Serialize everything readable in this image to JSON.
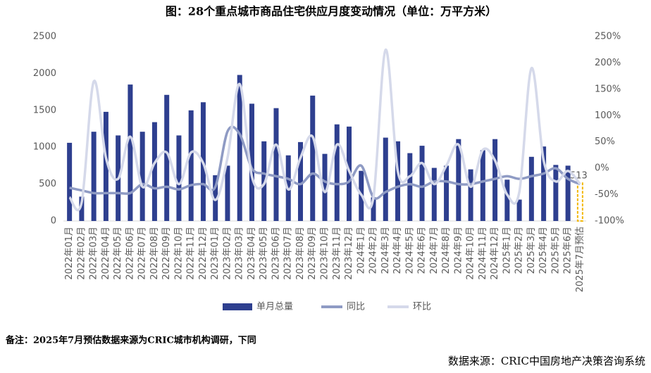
{
  "chart_data": {
    "type": "bar",
    "title": "图：28个重点城市商品住宅供应月度变动情况（单位：万平方米）",
    "categories": [
      "2022年01月",
      "2022年02月",
      "2022年03月",
      "2022年04月",
      "2022年05月",
      "2022年06月",
      "2022年07月",
      "2022年08月",
      "2022年09月",
      "2022年10月",
      "2022年11月",
      "2022年12月",
      "2023年01月",
      "2023年02月",
      "2023年03月",
      "2023年04月",
      "2023年05月",
      "2023年06月",
      "2023年07月",
      "2023年08月",
      "2023年09月",
      "2023年10月",
      "2023年11月",
      "2023年12月",
      "2024年1月",
      "2024年2月",
      "2024年3月",
      "2024年4月",
      "2024年5月",
      "2024年6月",
      "2024年7月",
      "2024年8月",
      "2024年9月",
      "2024年10月",
      "2024年11月",
      "2024年12月",
      "2025年1月",
      "2025年2月",
      "2025年3月",
      "2025年4月",
      "2025年5月",
      "2025年6月",
      "2025年7月预估"
    ],
    "series": [
      {
        "name": "单月总量",
        "color": "#2e3f8f",
        "values": [
          1060,
          330,
          1210,
          1480,
          1160,
          1850,
          1210,
          1340,
          1710,
          1160,
          1500,
          1610,
          620,
          750,
          1980,
          1590,
          1080,
          1530,
          890,
          1070,
          1700,
          910,
          1310,
          1280,
          680,
          320,
          1130,
          1080,
          920,
          1020,
          720,
          750,
          1110,
          700,
          960,
          1110,
          560,
          290,
          870,
          1010,
          760,
          750,
          513
        ]
      },
      {
        "name": "同比",
        "color": "#8f9bc4",
        "axis": "y2",
        "values": [
          -37,
          -42,
          -47,
          -47,
          -47,
          -47,
          -30,
          -38,
          -35,
          -40,
          -32,
          -30,
          -35,
          70,
          65,
          0,
          -10,
          -15,
          -20,
          -30,
          -10,
          -25,
          -30,
          -25,
          5,
          -55,
          -45,
          -35,
          -30,
          -35,
          -25,
          -25,
          -30,
          -30,
          -25,
          -20,
          -15,
          -20,
          -15,
          -10,
          0,
          -20,
          -30
        ]
      },
      {
        "name": "环比",
        "color": "#d5d9ea",
        "axis": "y2",
        "values": [
          -55,
          -65,
          165,
          20,
          -20,
          60,
          -35,
          10,
          30,
          -30,
          30,
          10,
          -60,
          20,
          160,
          -15,
          -30,
          45,
          -40,
          20,
          60,
          -45,
          45,
          -5,
          -50,
          -55,
          225,
          -5,
          -15,
          10,
          -30,
          5,
          45,
          -35,
          35,
          15,
          -50,
          -45,
          190,
          15,
          -25,
          -5,
          -30
        ]
      }
    ],
    "ylim": [
      0,
      2500
    ],
    "yticks": [
      0,
      500,
      1000,
      1500,
      2000,
      2500
    ],
    "y2lim": [
      -100,
      250
    ],
    "y2ticks": [
      {
        "value": -100,
        "label": "-100%"
      },
      {
        "value": -50,
        "label": "-50%"
      },
      {
        "value": 0,
        "label": "0%"
      },
      {
        "value": 50,
        "label": "50%"
      },
      {
        "value": 100,
        "label": "100%"
      },
      {
        "value": 150,
        "label": "150%"
      },
      {
        "value": 200,
        "label": "200%"
      },
      {
        "value": 250,
        "label": "250%"
      }
    ],
    "estimate_color": "#f2b705"
  },
  "note": "备注：2025年7月预估数据来源为CRIC城市机构调研，下同",
  "source": "数据来源：CRIC中国房地产决策咨询系统"
}
